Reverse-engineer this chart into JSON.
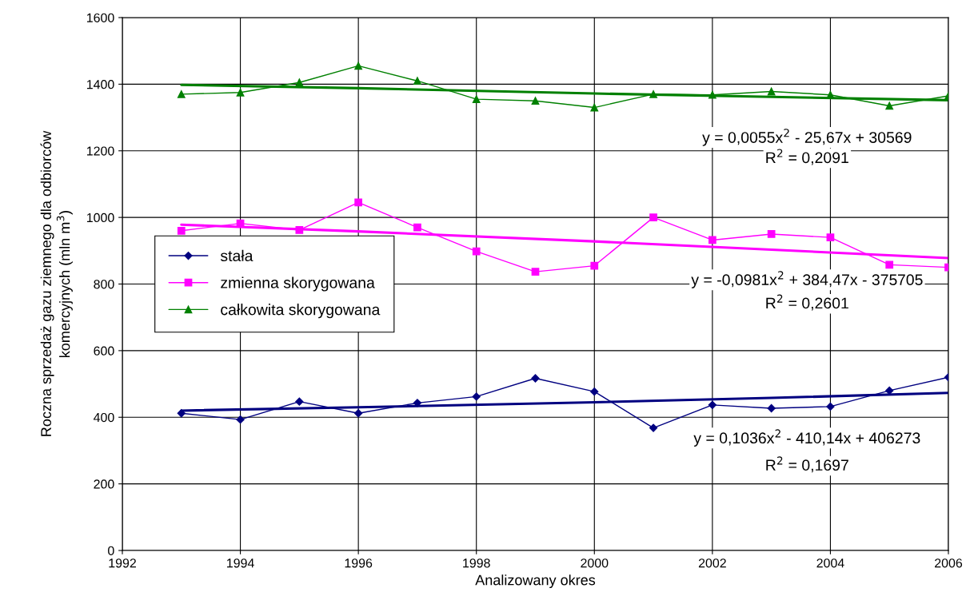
{
  "chart_data": {
    "type": "line",
    "xlabel": "Analizowany okres",
    "ylabel": "Roczna sprzedaż gazu ziemnego dla odbiorców\nkomercyjnych (mln m$^{3}$)",
    "x": [
      1993,
      1994,
      1995,
      1996,
      1997,
      1998,
      1999,
      2000,
      2001,
      2002,
      2003,
      2004,
      2005,
      2006
    ],
    "series": [
      {
        "name": "stała",
        "color": "#000080",
        "marker": "diamond",
        "values": [
          412,
          393,
          447,
          412,
          443,
          462,
          517,
          477,
          368,
          437,
          427,
          432,
          480,
          520
        ]
      },
      {
        "name": "zmienna skorygowana",
        "color": "#ff00ff",
        "marker": "square",
        "values": [
          960,
          982,
          962,
          1045,
          970,
          898,
          837,
          855,
          1000,
          932,
          950,
          940,
          858,
          850
        ]
      },
      {
        "name": "całkowita skorygowana",
        "color": "#008000",
        "marker": "triangle",
        "values": [
          1370,
          1375,
          1405,
          1455,
          1410,
          1355,
          1350,
          1330,
          1370,
          1368,
          1378,
          1368,
          1335,
          1365
        ]
      },
      {
        "color": "#000080",
        "marker": "none",
        "x": [
          1993,
          1996,
          2000,
          2003,
          2006
        ],
        "values": [
          420,
          430,
          445,
          458,
          473
        ]
      },
      {
        "color": "#ff00ff",
        "marker": "none",
        "x": [
          1993,
          1996,
          2000,
          2003,
          2006
        ],
        "values": [
          978,
          958,
          928,
          903,
          878
        ]
      },
      {
        "color": "#008000",
        "marker": "none",
        "x": [
          1993,
          1996,
          2000,
          2003,
          2006
        ],
        "values": [
          1398,
          1388,
          1372,
          1362,
          1352
        ]
      }
    ],
    "xlim": [
      1992,
      2006
    ],
    "xticks": [
      1992,
      1994,
      1996,
      1998,
      2000,
      2002,
      2004,
      2006
    ],
    "ylim": [
      0,
      1600
    ],
    "yticks": [
      0,
      200,
      400,
      600,
      800,
      1000,
      1200,
      1400,
      1600
    ],
    "grid": true,
    "legend": "left",
    "annotations": [
      "y = 0,0055x$^{2}$ - 25,67x + 30569",
      "R$^{2}$ = 0,2091",
      "y = -0,0981x$^{2}$ + 384,47x - 375705",
      "R$^{2}$ = 0,2601",
      "y = 0,1036x$^{2}$ - 410,14x + 406273",
      "R$^{2}$ = 0,1697"
    ]
  }
}
